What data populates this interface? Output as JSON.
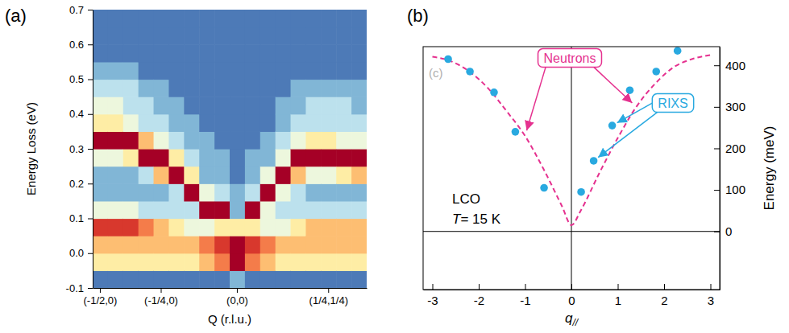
{
  "chart_data": [
    {
      "label": "(a)",
      "type": "heatmap",
      "x_label": "Q (r.l.u.)",
      "y_label": "Energy Loss (eV)",
      "categories": [
        "(-1/2,0)",
        null,
        null,
        null,
        "(-1/4,0)",
        null,
        null,
        null,
        null,
        "(0,0)",
        null,
        null,
        null,
        null,
        null,
        "(1/4,1/4)",
        null,
        null
      ],
      "y_bins": [
        -0.1,
        -0.05,
        0,
        0.05,
        0.1,
        0.15,
        0.2,
        0.25,
        0.3,
        0.35,
        0.4,
        0.45,
        0.5,
        0.55,
        0.6,
        0.65,
        0.7
      ],
      "z": [
        [
          2,
          6,
          7,
          9,
          5,
          3,
          3,
          5,
          10,
          6,
          5,
          4,
          3,
          2,
          2,
          2
        ],
        [
          2,
          6,
          7,
          9,
          5,
          3,
          3,
          5,
          10,
          6,
          5,
          4,
          3,
          2,
          2,
          2
        ],
        [
          2,
          6,
          7,
          9,
          5,
          3,
          3,
          6,
          10,
          5,
          4,
          4,
          3,
          2,
          2,
          2
        ],
        [
          2,
          6,
          7,
          8,
          4,
          3,
          4,
          10,
          7,
          4,
          4,
          3,
          2,
          2,
          2,
          2
        ],
        [
          2,
          6,
          7,
          7,
          4,
          3,
          7,
          10,
          5,
          4,
          3,
          3,
          2,
          2,
          2,
          2
        ],
        [
          2,
          6,
          7,
          6,
          4,
          4,
          10,
          6,
          4,
          3,
          3,
          2,
          2,
          2,
          2,
          2
        ],
        [
          2,
          6,
          7,
          5,
          4,
          10,
          6,
          4,
          3,
          3,
          2,
          2,
          2,
          2,
          2,
          2
        ],
        [
          2,
          7,
          8,
          5,
          10,
          5,
          3,
          3,
          3,
          2,
          2,
          2,
          2,
          2,
          2,
          2
        ],
        [
          2,
          8,
          9,
          6,
          10,
          4,
          3,
          3,
          2,
          2,
          2,
          2,
          2,
          2,
          2,
          2
        ],
        [
          3,
          10,
          10,
          6,
          3,
          3,
          2,
          2,
          2,
          2,
          2,
          2,
          2,
          2,
          2,
          2
        ],
        [
          2,
          8,
          9,
          6,
          10,
          4,
          3,
          3,
          2,
          2,
          2,
          2,
          2,
          2,
          2,
          2
        ],
        [
          2,
          7,
          8,
          5,
          5,
          10,
          5,
          3,
          3,
          2,
          2,
          2,
          2,
          2,
          2,
          2
        ],
        [
          2,
          6,
          7,
          5,
          4,
          5,
          10,
          5,
          4,
          3,
          3,
          2,
          2,
          2,
          2,
          2
        ],
        [
          2,
          6,
          7,
          6,
          4,
          4,
          7,
          10,
          5,
          4,
          3,
          3,
          2,
          2,
          2,
          2
        ],
        [
          2,
          6,
          7,
          7,
          4,
          3,
          5,
          10,
          6,
          4,
          4,
          3,
          2,
          2,
          2,
          2
        ],
        [
          2,
          6,
          7,
          7,
          4,
          3,
          5,
          10,
          6,
          4,
          4,
          3,
          2,
          2,
          2,
          2
        ],
        [
          2,
          6,
          7,
          7,
          4,
          3,
          6,
          10,
          5,
          4,
          4,
          3,
          2,
          2,
          2,
          2
        ],
        [
          2,
          6,
          7,
          7,
          4,
          3,
          7,
          10,
          5,
          4,
          3,
          3,
          2,
          2,
          2,
          2
        ]
      ],
      "zlim": [
        1,
        10
      ],
      "ylim": [
        -0.1,
        0.7
      ],
      "yticks": [
        -0.1,
        {
          "value": 0,
          "label": "0.0"
        },
        0.1,
        0.2,
        0.3,
        0.4,
        0.5,
        0.6,
        0.7
      ]
    },
    {
      "label": "(b)",
      "type": "scatter",
      "x_label": "q//",
      "y_label": "Energy (meV)",
      "xlim": [
        -3.2,
        3.2
      ],
      "xticks": [
        -3,
        -2,
        -1,
        0,
        1,
        2,
        3
      ],
      "ylim": [
        -140,
        445
      ],
      "yticks": [
        0,
        100,
        200,
        300,
        400
      ],
      "series": [
        {
          "name": "Neutrons",
          "type": "line",
          "line_style": "dashed",
          "color": "#e5318f",
          "x": [
            -3.0,
            -2.6,
            -2.2,
            -1.8,
            -1.4,
            -1.0,
            -0.6,
            -0.2,
            0.0,
            0.2,
            0.6,
            1.0,
            1.4,
            1.8,
            2.2,
            2.6,
            3.0
          ],
          "values": [
            421,
            410,
            385,
            345,
            290,
            230,
            150,
            60,
            15,
            50,
            140,
            225,
            300,
            355,
            395,
            415,
            425
          ]
        },
        {
          "name": "RIXS",
          "type": "scatter",
          "marker": "circle",
          "color": "#29a9e0",
          "x": [
            -2.66,
            -2.19,
            -1.67,
            -1.21,
            -0.59,
            0.21,
            0.48,
            0.88,
            1.26,
            1.83,
            2.29
          ],
          "values": [
            415,
            385,
            335,
            240,
            105,
            95,
            170,
            255,
            340,
            385,
            435
          ]
        }
      ],
      "annotations": [
        "LCO",
        "T= 15 K",
        "(c)"
      ]
    }
  ]
}
